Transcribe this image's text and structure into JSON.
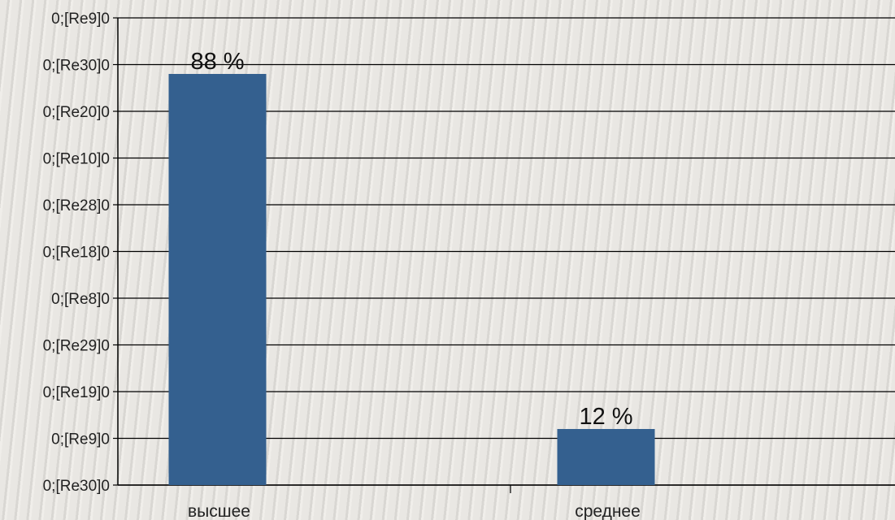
{
  "chart_data": {
    "type": "bar",
    "categories": [
      "высшее",
      "среднее"
    ],
    "values": [
      88,
      12
    ],
    "data_labels": [
      "88 %",
      "12 %"
    ],
    "y_tick_labels": [
      "0;[Re30]0",
      "0;[Re9]0",
      "0;[Re19]0",
      "0;[Re29]0",
      "0;[Re8]0",
      "0;[Re18]0",
      "0;[Re28]0",
      "0;[Re10]0",
      "0;[Re20]0",
      "0;[Re30]0",
      "0;[Re9]0"
    ],
    "ylim": [
      0,
      100
    ],
    "grid": true,
    "legend": "none",
    "colors": {
      "bar": "#34608f",
      "gridline": "#000000",
      "axis": "#000000"
    }
  }
}
